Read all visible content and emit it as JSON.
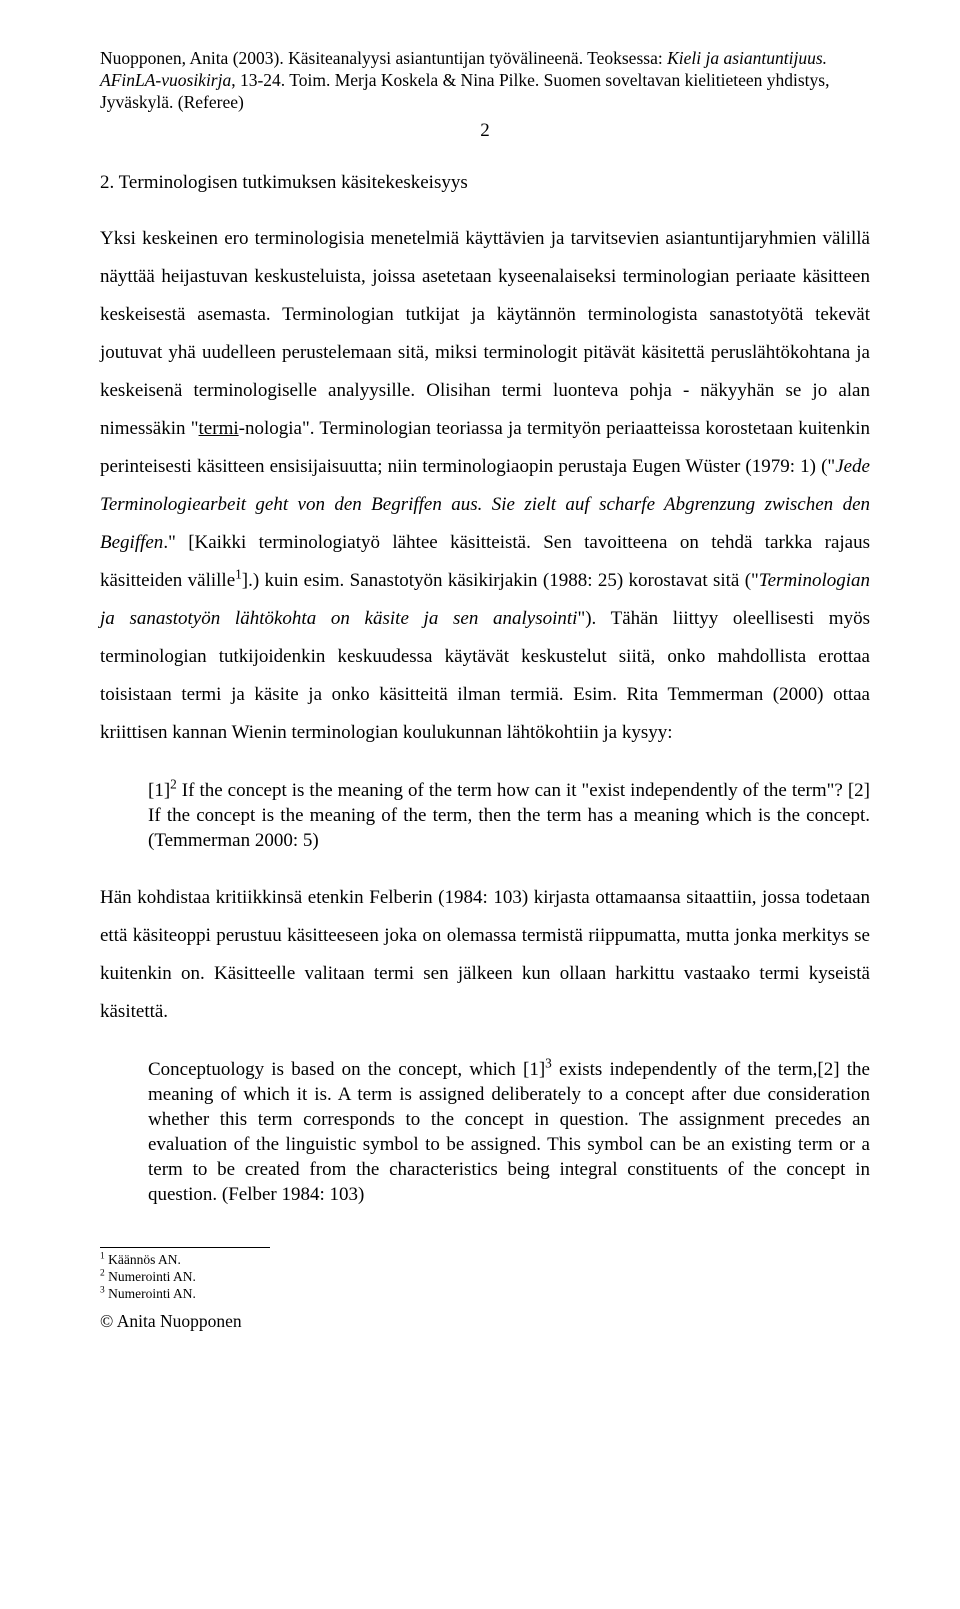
{
  "header": {
    "line1_pre": "Nuopponen, Anita (2003). Käsiteanalyysi asiantuntijan työvälineenä. Teoksessa: ",
    "line1_italic": "Kieli ja asiantuntijuus. AFinLA-vuosikirja",
    "line1_post": ", 13-24. Toim. Merja Koskela & Nina Pilke. Suomen soveltavan kielitieteen yhdistys, Jyväskylä. (Referee)",
    "page_number": "2"
  },
  "section": {
    "heading": "2. Terminologisen tutkimuksen käsitekeskeisyys"
  },
  "para1": {
    "t1": "Yksi keskeinen ero terminologisia menetelmiä käyttävien ja tarvitsevien asiantuntijaryhmien välillä näyttää heijastuvan keskusteluista, joissa asetetaan kyseenalaiseksi terminologian periaate käsitteen keskeisestä asemasta. Terminologian tutkijat ja käytännön terminologista sanastotyötä tekevät joutuvat yhä uudelleen perustelemaan sitä, miksi terminologit pitävät käsitettä peruslähtökohtana ja keskeisenä terminologiselle analyysille. Olisihan termi luonteva pohja - näkyyhän se jo alan nimessäkin \"",
    "underlined": "termi",
    "t2": "-nologia\". Terminologian teoriassa ja termityön periaatteissa korostetaan kuitenkin perinteisesti käsitteen ensisijaisuutta; niin terminologiaopin perustaja Eugen Wüster (1979: 1) (\"",
    "italic1": "Jede Terminologiearbeit geht von den Begriffen aus. Sie zielt auf scharfe Abgrenzung zwischen den Begiffen",
    "t3": ".\" [Kaikki terminologiatyö lähtee käsitteistä. Sen tavoitteena on tehdä tarkka rajaus käsitteiden välille",
    "sup1": "1",
    "t4": "].) kuin esim. Sanastotyön käsikirjakin (1988: 25) korostavat sitä (\"",
    "italic2": "Terminologian ja sanastotyön lähtökohta on käsite ja sen analysointi",
    "t5": "\"). Tähän liittyy oleellisesti myös terminologian tutkijoidenkin keskuudessa käytävät keskustelut siitä, onko mahdollista erottaa toisistaan termi ja käsite ja onko käsitteitä ilman termiä. Esim. Rita Temmerman (2000) ottaa kriittisen kannan Wienin terminologian koulukunnan lähtökohtiin ja kysyy:"
  },
  "quote1": {
    "t1": "[1]",
    "sup": "2",
    "t2": " If the concept is the meaning of the term how can it \"exist independently of the term\"? [2] If the concept is the meaning of the term, then the term has a meaning which is the concept. (Temmerman 2000: 5)"
  },
  "para2": {
    "text": "Hän kohdistaa kritiikkinsä etenkin Felberin (1984: 103) kirjasta ottamaansa sitaattiin, jossa todetaan että käsiteoppi perustuu käsitteeseen joka on olemassa termistä riippumatta, mutta jonka merkitys se kuitenkin on. Käsitteelle valitaan termi sen jälkeen kun ollaan harkittu vastaako termi kyseistä käsitettä."
  },
  "quote2": {
    "t1": "Conceptuology is based on the concept, which [1]",
    "sup": "3",
    "t2": " exists independently of the term,[2] the meaning of which it is. A term is assigned deliberately to a concept after due consideration whether this term corresponds to the concept in question. The assignment precedes an evaluation of the linguistic symbol to be assigned. This symbol can be an existing term or a term to be created from the characteristics being integral constituents of the concept in question. (Felber 1984: 103)"
  },
  "footnotes": {
    "f1": "Käännös AN.",
    "f2": "Numerointi AN.",
    "f3": "Numerointi AN."
  },
  "copyright": "© Anita Nuopponen"
}
